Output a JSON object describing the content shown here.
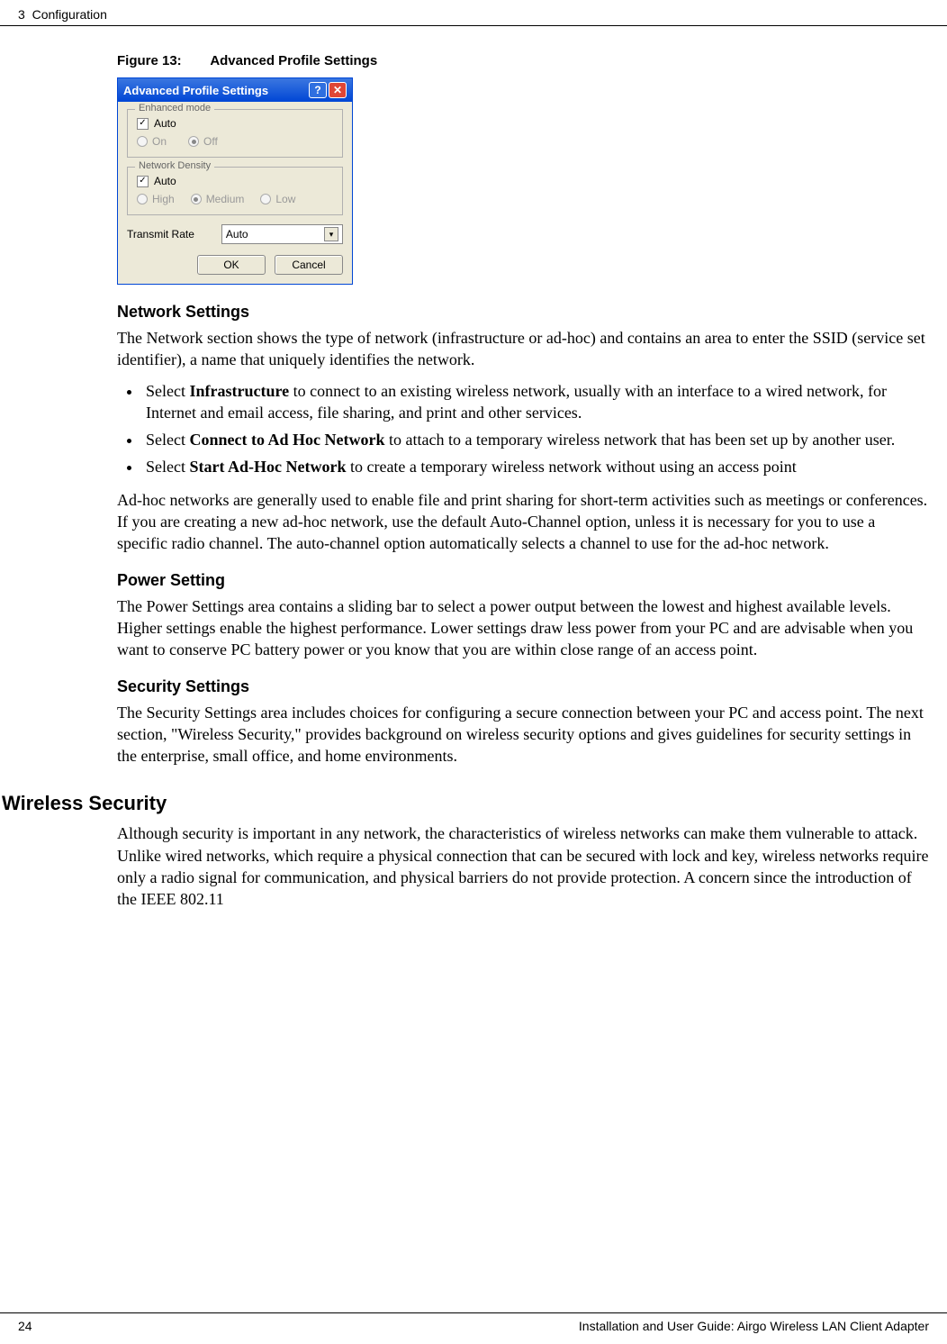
{
  "header": {
    "chapter_num": "3",
    "chapter_title": "Configuration"
  },
  "figure": {
    "label": "Figure 13:",
    "title": "Advanced Profile Settings"
  },
  "dialog": {
    "title": "Advanced Profile Settings",
    "help_glyph": "?",
    "close_glyph": "✕",
    "enhanced_mode": {
      "legend": "Enhanced mode",
      "auto_label": "Auto",
      "auto_checked_glyph": "✓",
      "on_label": "On",
      "off_label": "Off"
    },
    "network_density": {
      "legend": "Network Density",
      "auto_label": "Auto",
      "auto_checked_glyph": "✓",
      "high_label": "High",
      "medium_label": "Medium",
      "low_label": "Low"
    },
    "transmit_rate": {
      "label": "Transmit Rate",
      "value": "Auto",
      "arrow_glyph": "▾"
    },
    "ok_label": "OK",
    "cancel_label": "Cancel"
  },
  "sections": {
    "network_settings": {
      "heading": "Network Settings",
      "p1": "The Network section shows the type of network (infrastructure or ad-hoc) and contains an area to enter the SSID (service set identifier), a name that uniquely identifies the network.",
      "b1_pre": "Select ",
      "b1_bold": "Infrastructure",
      "b1_post": " to connect to an existing wireless network, usually with an interface to a wired network, for Internet and email access, file sharing, and print and other services.",
      "b2_pre": "Select ",
      "b2_bold": "Connect to Ad Hoc Network",
      "b2_post": " to attach to a temporary wireless network that has been set up by another user.",
      "b3_pre": "Select ",
      "b3_bold": "Start Ad-Hoc Network",
      "b3_post": " to create a temporary wireless network without using an access point",
      "p2": "Ad-hoc networks are generally used to enable file and print sharing for short-term activities such as meetings or conferences. If you are creating a new ad-hoc network, use the default Auto-Channel option, unless it is necessary for you to use a specific radio channel. The auto-channel option automatically selects a channel to use for the ad-hoc network."
    },
    "power_setting": {
      "heading": "Power Setting",
      "p1": "The Power Settings area contains a sliding bar to select a power output between the lowest and highest available levels. Higher settings enable the highest performance. Lower settings draw less power from your PC and are advisable when you want to conserve PC battery power or you know that you are within close range of an access point."
    },
    "security_settings": {
      "heading": "Security Settings",
      "p1": "The Security Settings area includes choices for configuring a secure connection between your PC and access point. The next section, \"Wireless Security,\" provides background on wireless security options and gives guidelines for security settings in the enterprise, small office, and home environments."
    },
    "wireless_security": {
      "heading": "Wireless Security",
      "p1": "Although security is important in any network, the characteristics of wireless networks can make them vulnerable to attack. Unlike wired networks, which require a physical connection that can be secured with lock and key, wireless networks require only a radio signal for communication, and physical barriers do not provide protection. A concern since the introduction of the IEEE 802.11"
    }
  },
  "footer": {
    "page_num": "24",
    "doc_title": "Installation and User Guide: Airgo Wireless LAN Client Adapter"
  }
}
